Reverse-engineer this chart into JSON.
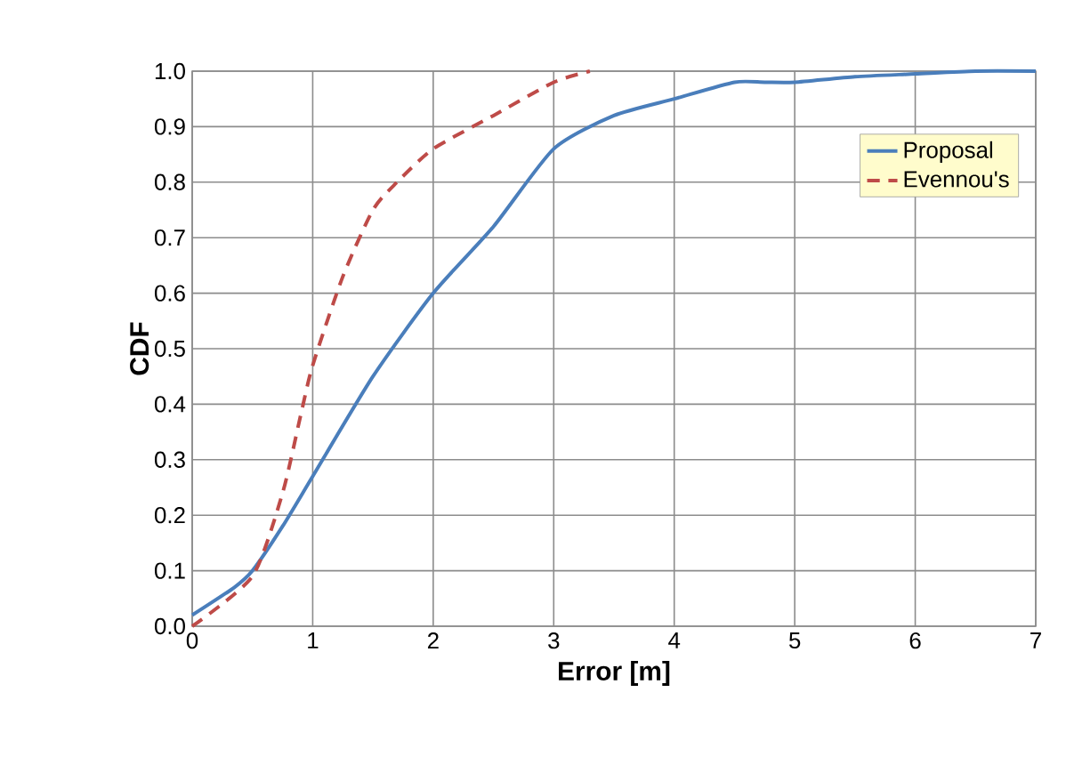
{
  "chart_data": {
    "type": "line",
    "xlabel": "Error [m]",
    "ylabel": "CDF",
    "xlim": [
      0,
      7
    ],
    "xticks": [
      0,
      1,
      2,
      3,
      4,
      5,
      6,
      7
    ],
    "ylim": [
      0,
      1
    ],
    "yticks": [
      {
        "value": 0,
        "label": "0.0"
      },
      0.1,
      0.2,
      0.3,
      0.4,
      0.5,
      0.6,
      0.7,
      0.8,
      0.9,
      {
        "value": 1,
        "label": "1.0"
      }
    ],
    "grid": true,
    "legend": "right",
    "series": [
      {
        "name": "Proposal",
        "color": "#4a7ebb",
        "line_style": "solid",
        "x": [
          0,
          0.35,
          0.5,
          0.75,
          1,
          1.5,
          2,
          2.5,
          3,
          3.5,
          4,
          4.5,
          4.75,
          5,
          5.5,
          6,
          6.5,
          7
        ],
        "values": [
          0.02,
          0.07,
          0.1,
          0.18,
          0.27,
          0.45,
          0.6,
          0.72,
          0.86,
          0.92,
          0.95,
          0.98,
          0.98,
          0.98,
          0.99,
          0.995,
          1.0,
          1.0
        ]
      },
      {
        "name": "Evennou's",
        "color": "#be4b48",
        "line_style": "dashed",
        "x": [
          0,
          0.5,
          0.75,
          0.9,
          1,
          1.25,
          1.5,
          1.7,
          2,
          2.5,
          3,
          3.3
        ],
        "values": [
          0,
          0.09,
          0.24,
          0.38,
          0.47,
          0.63,
          0.75,
          0.8,
          0.86,
          0.92,
          0.98,
          1.0
        ]
      }
    ]
  }
}
